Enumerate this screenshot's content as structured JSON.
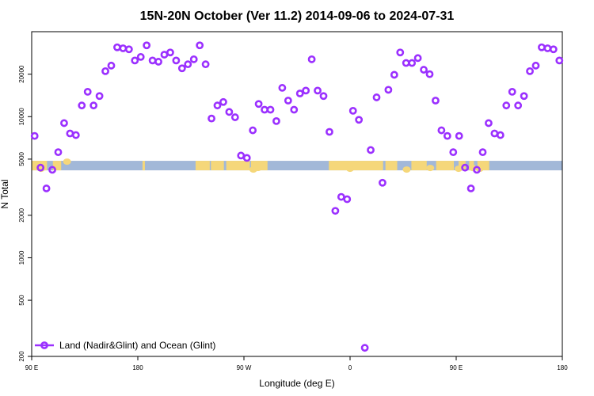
{
  "chart_data": {
    "type": "scatter",
    "title": "15N-20N October (Ver 11.2)   2014-09-06 to 2024-07-31",
    "xlabel": "Longitude (deg E)",
    "ylabel": "N Total",
    "y_scale": "log",
    "x_ticks": [
      {
        "value": 0,
        "label": "90 E"
      },
      {
        "value": 90,
        "label": "180"
      },
      {
        "value": 180,
        "label": "90 W"
      },
      {
        "value": 270,
        "label": "0"
      },
      {
        "value": 360,
        "label": "90 E"
      },
      {
        "value": 450,
        "label": "180"
      }
    ],
    "y_ticks": [
      200,
      500,
      1000,
      2000,
      5000,
      10000,
      20000
    ],
    "xlim": [
      0,
      450
    ],
    "ylim": [
      200,
      40000
    ],
    "grid": false,
    "legend_position": "bottom-left",
    "colors": {
      "series": "#9b30ff",
      "band_ocean": "#a2b8d8",
      "band_land": "#f5d77a"
    },
    "land_band_value": 4500,
    "series": [
      {
        "name": "Land (Nadir&Glint) and Ocean (Glint)",
        "points": [
          [
            2.5,
            7300
          ],
          [
            7.5,
            4350
          ],
          [
            12.5,
            3100
          ],
          [
            17.5,
            4200
          ],
          [
            22.5,
            5600
          ],
          [
            27.5,
            9000
          ],
          [
            32.5,
            7600
          ],
          [
            37.5,
            7400
          ],
          [
            42.5,
            12000
          ],
          [
            47.5,
            15000
          ],
          [
            52.5,
            12000
          ],
          [
            57.5,
            14000
          ],
          [
            62.5,
            21000
          ],
          [
            67.5,
            23000
          ],
          [
            72.5,
            31000
          ],
          [
            77.5,
            30500
          ],
          [
            82.5,
            30000
          ],
          [
            87.5,
            25000
          ],
          [
            92.5,
            26500
          ],
          [
            97.5,
            32000
          ],
          [
            102.5,
            25000
          ],
          [
            107.5,
            24500
          ],
          [
            112.5,
            27500
          ],
          [
            117.5,
            28500
          ],
          [
            122.5,
            25000
          ],
          [
            127.5,
            22000
          ],
          [
            132.5,
            23500
          ],
          [
            137.5,
            25500
          ],
          [
            142.5,
            32000
          ],
          [
            147.5,
            23500
          ],
          [
            152.5,
            9700
          ],
          [
            157.5,
            12000
          ],
          [
            162.5,
            12700
          ],
          [
            167.5,
            10800
          ],
          [
            172.5,
            9900
          ],
          [
            177.5,
            5300
          ],
          [
            182.5,
            5100
          ],
          [
            187.5,
            8000
          ],
          [
            192.5,
            12300
          ],
          [
            197.5,
            11200
          ],
          [
            202.5,
            11200
          ],
          [
            207.5,
            9300
          ],
          [
            212.5,
            16000
          ],
          [
            217.5,
            13000
          ],
          [
            222.5,
            11200
          ],
          [
            227.5,
            14600
          ],
          [
            232.5,
            15300
          ],
          [
            237.5,
            25500
          ],
          [
            242.5,
            15300
          ],
          [
            247.5,
            14000
          ],
          [
            252.5,
            7800
          ],
          [
            257.5,
            2150
          ],
          [
            262.5,
            2700
          ],
          [
            267.5,
            2600
          ],
          [
            272.5,
            11000
          ],
          [
            277.5,
            9500
          ],
          [
            287.5,
            5800
          ],
          [
            292.5,
            13700
          ],
          [
            297.5,
            3400
          ],
          [
            302.5,
            15500
          ],
          [
            307.5,
            19800
          ],
          [
            312.5,
            28500
          ],
          [
            317.5,
            24000
          ],
          [
            322.5,
            24000
          ],
          [
            327.5,
            26000
          ],
          [
            332.5,
            21500
          ],
          [
            337.5,
            20000
          ],
          [
            342.5,
            13000
          ],
          [
            347.5,
            8000
          ],
          [
            352.5,
            7300
          ],
          [
            357.5,
            5600
          ],
          [
            362.5,
            7300
          ],
          [
            367.5,
            4350
          ],
          [
            372.5,
            3100
          ],
          [
            377.5,
            4200
          ],
          [
            382.5,
            5600
          ],
          [
            387.5,
            9000
          ],
          [
            392.5,
            7600
          ],
          [
            397.5,
            7400
          ],
          [
            402.5,
            12000
          ],
          [
            407.5,
            15000
          ],
          [
            412.5,
            12000
          ],
          [
            417.5,
            14000
          ],
          [
            422.5,
            21000
          ],
          [
            427.5,
            23000
          ],
          [
            432.5,
            31000
          ],
          [
            437.5,
            30500
          ],
          [
            442.5,
            30000
          ],
          [
            447.5,
            25000
          ],
          [
            282.5,
            230
          ]
        ]
      }
    ]
  }
}
